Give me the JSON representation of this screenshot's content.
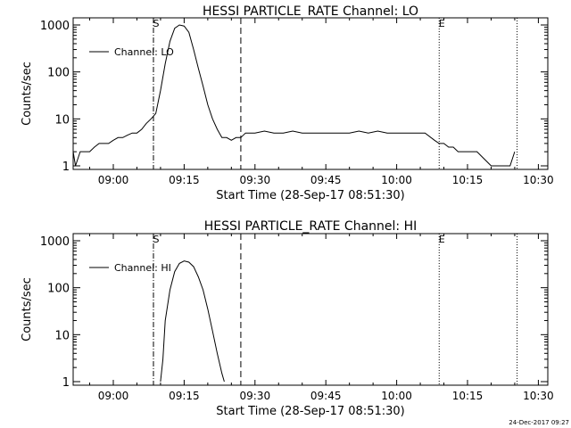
{
  "footer": {
    "timestamp": "24-Dec-2017 09:27"
  },
  "chart_data": [
    {
      "type": "line",
      "title": "HESSI PARTICLE_RATE Channel: LO",
      "xlabel": "Start Time (28-Sep-17 08:51:30)",
      "ylabel": "Counts/sec",
      "yscale": "log",
      "xlim": [
        "08:51:30",
        "10:32:00"
      ],
      "ylim": [
        1,
        1000
      ],
      "xticks": [
        "09:00",
        "09:15",
        "09:30",
        "09:45",
        "10:00",
        "10:15",
        "10:30"
      ],
      "yticks": [
        "1",
        "10",
        "100",
        "1000"
      ],
      "legend": {
        "label": "Channel: LO",
        "placement": "top-left"
      },
      "markers": [
        {
          "time": "09:08:30",
          "style": "dash-dot",
          "label": "S"
        },
        {
          "time": "09:27:00",
          "style": "dashed",
          "label": ""
        },
        {
          "time": "10:09:00",
          "style": "dotted",
          "label": "E"
        },
        {
          "time": "10:25:30",
          "style": "dotted",
          "label": ""
        }
      ],
      "series": [
        {
          "name": "Channel: LO",
          "x": [
            "08:51:30",
            "08:52:00",
            "08:53:00",
            "08:54:00",
            "08:55:00",
            "08:56:00",
            "08:57:00",
            "08:58:00",
            "08:59:00",
            "09:00:00",
            "09:01:00",
            "09:02:00",
            "09:03:00",
            "09:04:00",
            "09:05:00",
            "09:06:00",
            "09:07:00",
            "09:08:00",
            "09:09:00",
            "09:10:00",
            "09:11:00",
            "09:12:00",
            "09:13:00",
            "09:14:00",
            "09:15:00",
            "09:16:00",
            "09:17:00",
            "09:18:00",
            "09:19:00",
            "09:20:00",
            "09:21:00",
            "09:22:00",
            "09:23:00",
            "09:24:00",
            "09:25:00",
            "09:26:00",
            "09:27:00",
            "09:28:00",
            "09:30:00",
            "09:32:00",
            "09:34:00",
            "09:36:00",
            "09:38:00",
            "09:40:00",
            "09:42:00",
            "09:44:00",
            "09:46:00",
            "09:48:00",
            "09:50:00",
            "09:52:00",
            "09:54:00",
            "09:56:00",
            "09:58:00",
            "10:00:00",
            "10:02:00",
            "10:04:00",
            "10:06:00",
            "10:08:00",
            "10:09:00",
            "10:10:00",
            "10:11:00",
            "10:12:00",
            "10:13:00",
            "10:14:00",
            "10:15:00",
            "10:16:00",
            "10:17:00",
            "10:20:00",
            "10:24:00",
            "10:25:00"
          ],
          "y": [
            2,
            1,
            2,
            2,
            2,
            2.5,
            3,
            3,
            3,
            3.5,
            4,
            4,
            4.5,
            5,
            5,
            6,
            8,
            10,
            13,
            40,
            150,
            450,
            850,
            1000,
            950,
            700,
            300,
            120,
            50,
            20,
            10,
            6,
            4,
            4,
            3.5,
            4,
            4,
            5,
            5,
            5.5,
            5,
            5,
            5.5,
            5,
            5,
            5,
            5,
            5,
            5,
            5.5,
            5,
            5.5,
            5,
            5,
            5,
            5,
            5,
            3.5,
            3,
            3,
            2.5,
            2.5,
            2,
            2,
            2,
            2,
            2,
            1,
            1,
            2
          ]
        }
      ]
    },
    {
      "type": "line",
      "title": "HESSI PARTICLE_RATE Channel: HI",
      "xlabel": "Start Time (28-Sep-17 08:51:30)",
      "ylabel": "Counts/sec",
      "yscale": "log",
      "xlim": [
        "08:51:30",
        "10:32:00"
      ],
      "ylim": [
        1,
        1000
      ],
      "xticks": [
        "09:00",
        "09:15",
        "09:30",
        "09:45",
        "10:00",
        "10:15",
        "10:30"
      ],
      "yticks": [
        "1",
        "10",
        "100",
        "1000"
      ],
      "legend": {
        "label": "Channel: HI",
        "placement": "top-left"
      },
      "markers": [
        {
          "time": "09:08:30",
          "style": "dash-dot",
          "label": "S"
        },
        {
          "time": "09:27:00",
          "style": "dashed",
          "label": ""
        },
        {
          "time": "10:09:00",
          "style": "dotted",
          "label": "E"
        },
        {
          "time": "10:25:30",
          "style": "dotted",
          "label": ""
        }
      ],
      "series": [
        {
          "name": "Channel: HI",
          "x": [
            "09:10:00",
            "09:10:30",
            "09:11:00",
            "09:12:00",
            "09:13:00",
            "09:14:00",
            "09:15:00",
            "09:16:00",
            "09:17:00",
            "09:18:00",
            "09:19:00",
            "09:20:00",
            "09:21:00",
            "09:22:00",
            "09:23:00",
            "09:23:30"
          ],
          "y": [
            1,
            3,
            20,
            90,
            220,
            330,
            370,
            350,
            280,
            170,
            90,
            35,
            12,
            4,
            1.5,
            1
          ]
        }
      ]
    }
  ]
}
